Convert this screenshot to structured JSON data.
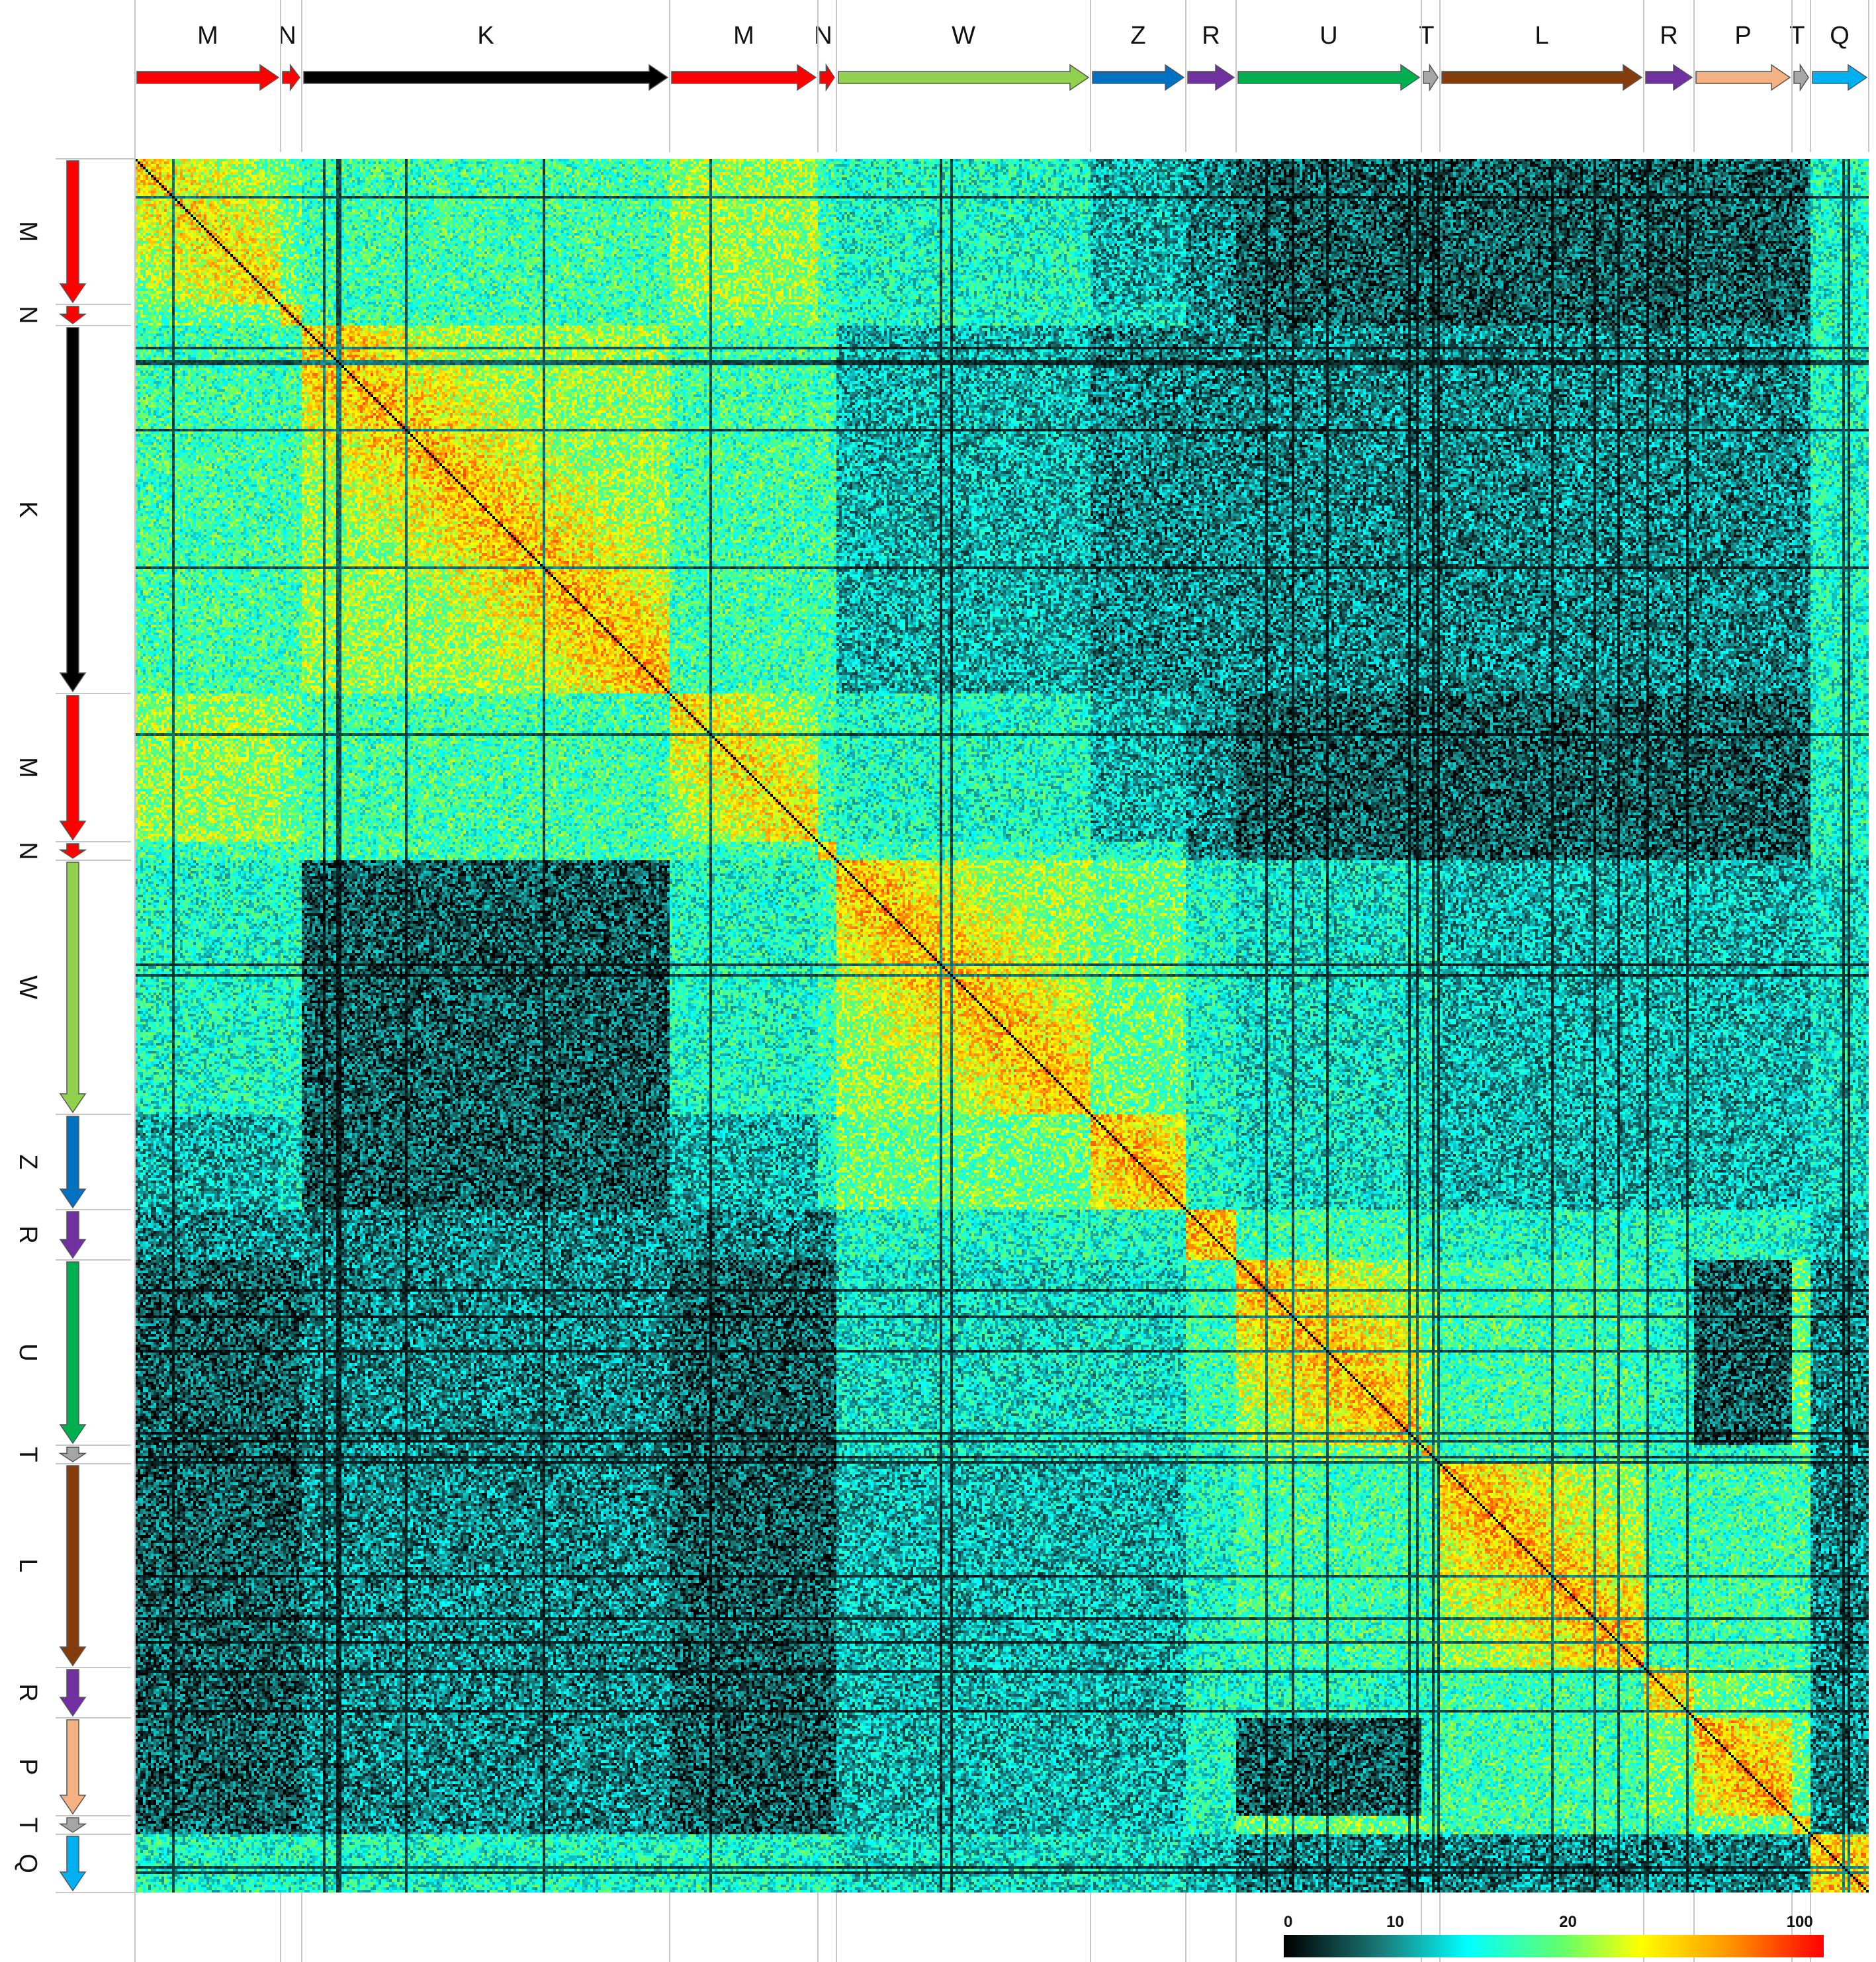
{
  "chart_data": {
    "type": "heatmap",
    "title": "",
    "xlabel": "",
    "ylabel": "",
    "grid": true,
    "segments": [
      {
        "label": "M",
        "color": "#ff0000",
        "weight": 15
      },
      {
        "label": "N",
        "color": "#ff0000",
        "weight": 2
      },
      {
        "label": "K",
        "color": "#000000",
        "weight": 38
      },
      {
        "label": "M",
        "color": "#ff0000",
        "weight": 15
      },
      {
        "label": "N",
        "color": "#ff0000",
        "weight": 2
      },
      {
        "label": "W",
        "color": "#92d050",
        "weight": 26
      },
      {
        "label": "Z",
        "color": "#0070c0",
        "weight": 10
      },
      {
        "label": "R",
        "color": "#7030a0",
        "weight": 5
      },
      {
        "label": "U",
        "color": "#00b050",
        "weight": 19
      },
      {
        "label": "T",
        "color": "#a6a6a6",
        "weight": 2
      },
      {
        "label": "L",
        "color": "#843c0c",
        "weight": 21
      },
      {
        "label": "R",
        "color": "#7030a0",
        "weight": 5
      },
      {
        "label": "P",
        "color": "#f4b183",
        "weight": 10
      },
      {
        "label": "T",
        "color": "#a6a6a6",
        "weight": 2
      },
      {
        "label": "Q",
        "color": "#00b0f0",
        "weight": 6
      }
    ],
    "block_similarity": [
      [
        8,
        8,
        7,
        9,
        7,
        6,
        4,
        3,
        2,
        2,
        2,
        2,
        2,
        2,
        6
      ],
      [
        8,
        8,
        7,
        8,
        7,
        6,
        5,
        3,
        2,
        2,
        2,
        2,
        2,
        2,
        6
      ],
      [
        7,
        7,
        9,
        7,
        7,
        4,
        3,
        3,
        3,
        3,
        3,
        3,
        3,
        3,
        6
      ],
      [
        9,
        8,
        7,
        8,
        7,
        6,
        4,
        3,
        2,
        2,
        2,
        2,
        2,
        2,
        6
      ],
      [
        7,
        7,
        7,
        7,
        8,
        7,
        6,
        3,
        2,
        2,
        2,
        2,
        2,
        2,
        6
      ],
      [
        6,
        6,
        2,
        6,
        7,
        9,
        8,
        6,
        5,
        5,
        4,
        4,
        4,
        4,
        5
      ],
      [
        4,
        5,
        2,
        4,
        6,
        8,
        9,
        6,
        5,
        5,
        4,
        4,
        4,
        4,
        5
      ],
      [
        3,
        3,
        3,
        3,
        3,
        6,
        6,
        9,
        7,
        6,
        6,
        6,
        6,
        6,
        4
      ],
      [
        2,
        2,
        3,
        2,
        2,
        5,
        5,
        7,
        9,
        8,
        7,
        6,
        2,
        8,
        3
      ],
      [
        2,
        2,
        3,
        2,
        2,
        5,
        5,
        6,
        8,
        8,
        7,
        6,
        6,
        8,
        3
      ],
      [
        2,
        2,
        3,
        2,
        2,
        4,
        4,
        6,
        7,
        7,
        9,
        7,
        7,
        7,
        3
      ],
      [
        2,
        2,
        3,
        2,
        2,
        4,
        4,
        6,
        6,
        6,
        7,
        8,
        8,
        7,
        3
      ],
      [
        2,
        2,
        3,
        2,
        2,
        4,
        4,
        6,
        2,
        6,
        7,
        8,
        9,
        8,
        3
      ],
      [
        2,
        2,
        3,
        2,
        2,
        4,
        4,
        6,
        8,
        8,
        7,
        7,
        8,
        8,
        3
      ],
      [
        6,
        6,
        6,
        6,
        6,
        5,
        5,
        4,
        3,
        3,
        3,
        3,
        3,
        3,
        9
      ]
    ],
    "value_scale": {
      "min": 0,
      "max": 100
    },
    "colorbar": {
      "ticks": [
        "0",
        "10",
        "20",
        "100"
      ],
      "stops": [
        {
          "pos": 0.0,
          "color": "#000000"
        },
        {
          "pos": 0.18,
          "color": "#1a7a78"
        },
        {
          "pos": 0.34,
          "color": "#00ffff"
        },
        {
          "pos": 0.52,
          "color": "#66ff66"
        },
        {
          "pos": 0.66,
          "color": "#ffff00"
        },
        {
          "pos": 0.82,
          "color": "#ff9900"
        },
        {
          "pos": 1.0,
          "color": "#ff0000"
        }
      ]
    },
    "colors": {
      "background": "#ffffff",
      "separator": "#c8c8c8",
      "diagonal": "#000000"
    }
  }
}
